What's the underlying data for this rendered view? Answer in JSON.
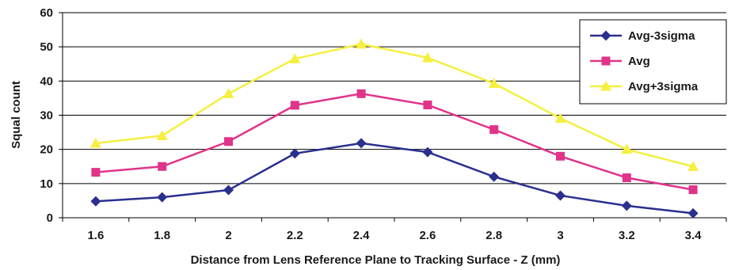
{
  "chart_data": {
    "type": "line",
    "title": "",
    "xlabel": "Distance from Lens Reference Plane to Tracking Surface - Z (mm)",
    "ylabel": "Squal count",
    "categories": [
      "1.6",
      "1.8",
      "2",
      "2.2",
      "2.4",
      "2.6",
      "2.8",
      "3",
      "3.2",
      "3.4"
    ],
    "ylim": [
      0,
      60
    ],
    "yticks": [
      "0",
      "10",
      "20",
      "30",
      "40",
      "50",
      "60"
    ],
    "grid": true,
    "legend_position": "top-right",
    "series": [
      {
        "name": "Avg-3sigma",
        "color": "#2b2f8e",
        "marker": "diamond",
        "values": [
          4.8,
          6.0,
          8.1,
          18.8,
          21.8,
          19.2,
          12.0,
          6.5,
          3.5,
          1.3
        ]
      },
      {
        "name": "Avg",
        "color": "#e0338a",
        "marker": "square",
        "values": [
          13.3,
          15.0,
          22.3,
          32.9,
          36.3,
          33.0,
          25.8,
          18.0,
          11.7,
          8.2
        ]
      },
      {
        "name": "Avg+3sigma",
        "color": "#f5ef3f",
        "marker": "triangle",
        "values": [
          21.8,
          24.0,
          36.3,
          46.5,
          50.8,
          46.8,
          39.3,
          29.1,
          20.0,
          15.0
        ]
      }
    ]
  }
}
